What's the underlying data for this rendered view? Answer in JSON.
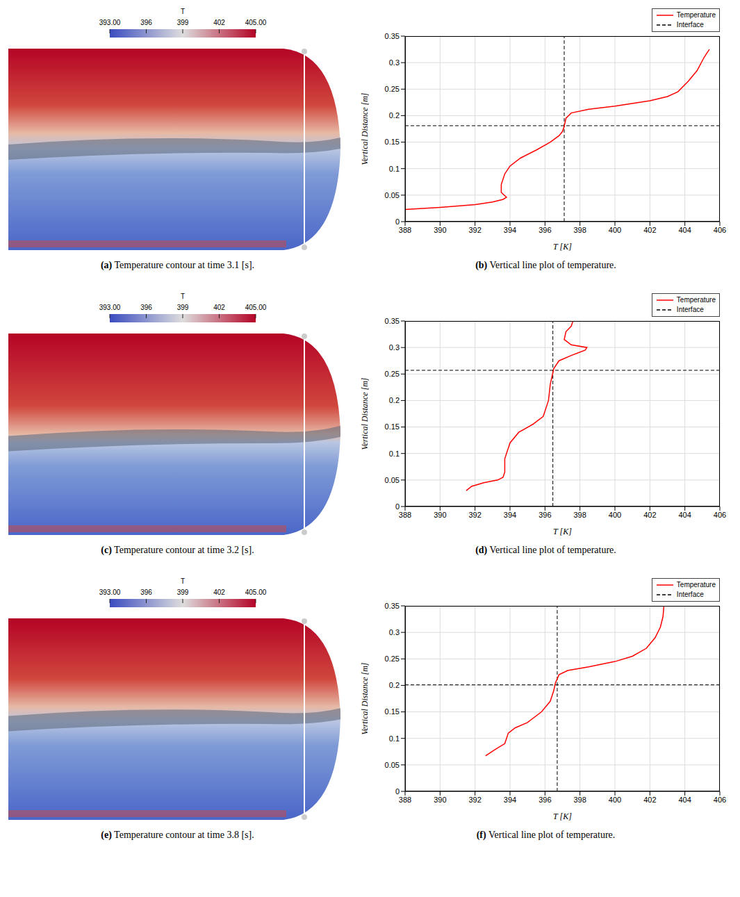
{
  "chart_data": [
    {
      "type": "contour",
      "label": "(a)",
      "caption": "Temperature contour at time 3.1 [s].",
      "colorbar": {
        "label": "T",
        "range": [
          393,
          405
        ],
        "ticks": [
          {
            "value": 393,
            "label": "393.00"
          },
          396,
          399,
          402,
          {
            "value": 405,
            "label": "405.00"
          }
        ]
      }
    },
    {
      "type": "line",
      "label": "(b)",
      "caption": "Vertical line plot of temperature.",
      "x_label": "T [K]",
      "y_label": "Vertical Distance [m]",
      "xlim": [
        388,
        406
      ],
      "xticks": [
        388,
        390,
        392,
        394,
        396,
        398,
        400,
        402,
        404,
        406
      ],
      "ylim": [
        0,
        0.35
      ],
      "yticks": [
        0,
        0.05,
        0.1,
        0.15,
        0.2,
        0.25,
        0.3,
        0.35
      ],
      "grid": true,
      "legend": "upper right",
      "series": [
        {
          "name": "Temperature",
          "color": "#ff0000",
          "line_style": "solid",
          "x": [
            388,
            390,
            392,
            393,
            393.6,
            393.8,
            393.5,
            393.5,
            393.7,
            394,
            394.6,
            395.5,
            396.3,
            396.8,
            397.0,
            397.1,
            397.2,
            397.5,
            398.5,
            400,
            402,
            403,
            403.6,
            404.2,
            404.7,
            405.1,
            405.4
          ],
          "y": [
            0.023,
            0.027,
            0.032,
            0.037,
            0.042,
            0.046,
            0.055,
            0.07,
            0.09,
            0.105,
            0.12,
            0.135,
            0.15,
            0.162,
            0.17,
            0.18,
            0.195,
            0.205,
            0.212,
            0.218,
            0.228,
            0.236,
            0.245,
            0.265,
            0.285,
            0.31,
            0.325
          ]
        },
        {
          "name": "Interface",
          "color": "#000000",
          "line_style": "dashed",
          "x": 397.1,
          "y": 0.181
        }
      ]
    },
    {
      "type": "contour",
      "label": "(c)",
      "caption": "Temperature contour at time 3.2 [s].",
      "colorbar": {
        "label": "T",
        "range": [
          393,
          405
        ],
        "ticks": [
          {
            "value": 393,
            "label": "393.00"
          },
          396,
          399,
          402,
          {
            "value": 405,
            "label": "405.00"
          }
        ]
      }
    },
    {
      "type": "line",
      "label": "(d)",
      "caption": "Vertical line plot of temperature.",
      "x_label": "T [K]",
      "y_label": "Vertical Distance [m]",
      "xlim": [
        388,
        406
      ],
      "xticks": [
        388,
        390,
        392,
        394,
        396,
        398,
        400,
        402,
        404,
        406
      ],
      "ylim": [
        0,
        0.35
      ],
      "yticks": [
        0,
        0.05,
        0.1,
        0.15,
        0.2,
        0.25,
        0.3,
        0.35
      ],
      "grid": true,
      "legend": "upper right",
      "series": [
        {
          "name": "Temperature",
          "color": "#ff0000",
          "line_style": "solid",
          "x": [
            391.5,
            391.8,
            392.5,
            393.3,
            393.6,
            393.7,
            393.7,
            394,
            394.5,
            395.3,
            395.9,
            396.2,
            396.3,
            396.5,
            396.8,
            397.5,
            398.3,
            398.4,
            397.5,
            397.1,
            397.2,
            397.5,
            397.6
          ],
          "y": [
            0.03,
            0.038,
            0.045,
            0.05,
            0.055,
            0.065,
            0.09,
            0.12,
            0.14,
            0.155,
            0.17,
            0.2,
            0.23,
            0.26,
            0.275,
            0.285,
            0.295,
            0.3,
            0.305,
            0.315,
            0.33,
            0.34,
            0.35
          ]
        },
        {
          "name": "Interface",
          "color": "#000000",
          "line_style": "dashed",
          "x": 396.45,
          "y": 0.257
        }
      ]
    },
    {
      "type": "contour",
      "label": "(e)",
      "caption": "Temperature contour at time 3.8 [s].",
      "colorbar": {
        "label": "T",
        "range": [
          393,
          405
        ],
        "ticks": [
          {
            "value": 393,
            "label": "393.00"
          },
          396,
          399,
          402,
          {
            "value": 405,
            "label": "405.00"
          }
        ]
      }
    },
    {
      "type": "line",
      "label": "(f)",
      "caption": "Vertical line plot of temperature.",
      "x_label": "T [K]",
      "y_label": "Vertical Distance [m]",
      "xlim": [
        388,
        406
      ],
      "xticks": [
        388,
        390,
        392,
        394,
        396,
        398,
        400,
        402,
        404,
        406
      ],
      "ylim": [
        0,
        0.35
      ],
      "yticks": [
        0,
        0.05,
        0.1,
        0.15,
        0.2,
        0.25,
        0.3,
        0.35
      ],
      "grid": true,
      "legend": "upper right",
      "series": [
        {
          "name": "Temperature",
          "color": "#ff0000",
          "line_style": "solid",
          "x": [
            392.6,
            393.2,
            393.7,
            393.8,
            393.9,
            394.3,
            395,
            395.8,
            396.3,
            396.5,
            396.6,
            396.8,
            397.3,
            398.5,
            400,
            401,
            401.8,
            402.3,
            402.6,
            402.75,
            402.8
          ],
          "y": [
            0.067,
            0.08,
            0.09,
            0.1,
            0.11,
            0.12,
            0.13,
            0.15,
            0.17,
            0.19,
            0.205,
            0.22,
            0.228,
            0.235,
            0.245,
            0.255,
            0.27,
            0.29,
            0.31,
            0.33,
            0.35
          ]
        },
        {
          "name": "Interface",
          "color": "#000000",
          "line_style": "dashed",
          "x": 396.7,
          "y": 0.201
        }
      ]
    }
  ]
}
